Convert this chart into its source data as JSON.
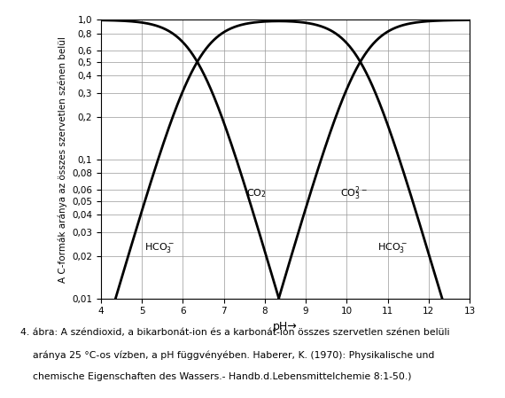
{
  "ylabel": "A C-formák aránya az összes szervetlen szénen belül",
  "xticks": [
    4,
    5,
    6,
    7,
    8,
    9,
    10,
    11,
    12,
    13
  ],
  "caption_line1": "4. ábra: A széndioxid, a bikarbonát-ion és a karbonát-ion összes szervetlen szénen belüli",
  "caption_line2": "    aránya 25 °C-os vízben, a pH függvényében. Haberer, K. (1970): Physikalische und",
  "caption_line3": "    chemische Eigenschaften des Wassers.- Handb.d.Lebensmittelchemie 8:1-50.)",
  "pKa1": 6.35,
  "pKa2": 10.33,
  "line_color": "#000000",
  "grid_color": "#999999",
  "yticks": [
    0.01,
    0.02,
    0.03,
    0.04,
    0.05,
    0.06,
    0.08,
    0.1,
    0.2,
    0.3,
    0.4,
    0.5,
    0.6,
    0.8,
    1.0
  ],
  "ytick_labels": [
    "0,01",
    "0,02",
    "0,03",
    "0,04",
    "0,05",
    "0,06",
    "0,08",
    "0,1",
    "0,2",
    "0,3",
    "0,4",
    "0,5",
    "0,6",
    "0,8",
    "1,0"
  ],
  "label_fontsize": 8,
  "tick_fontsize": 7.5,
  "ylabel_fontsize": 7.5,
  "caption_fontsize": 7.8,
  "linewidth": 2.0
}
